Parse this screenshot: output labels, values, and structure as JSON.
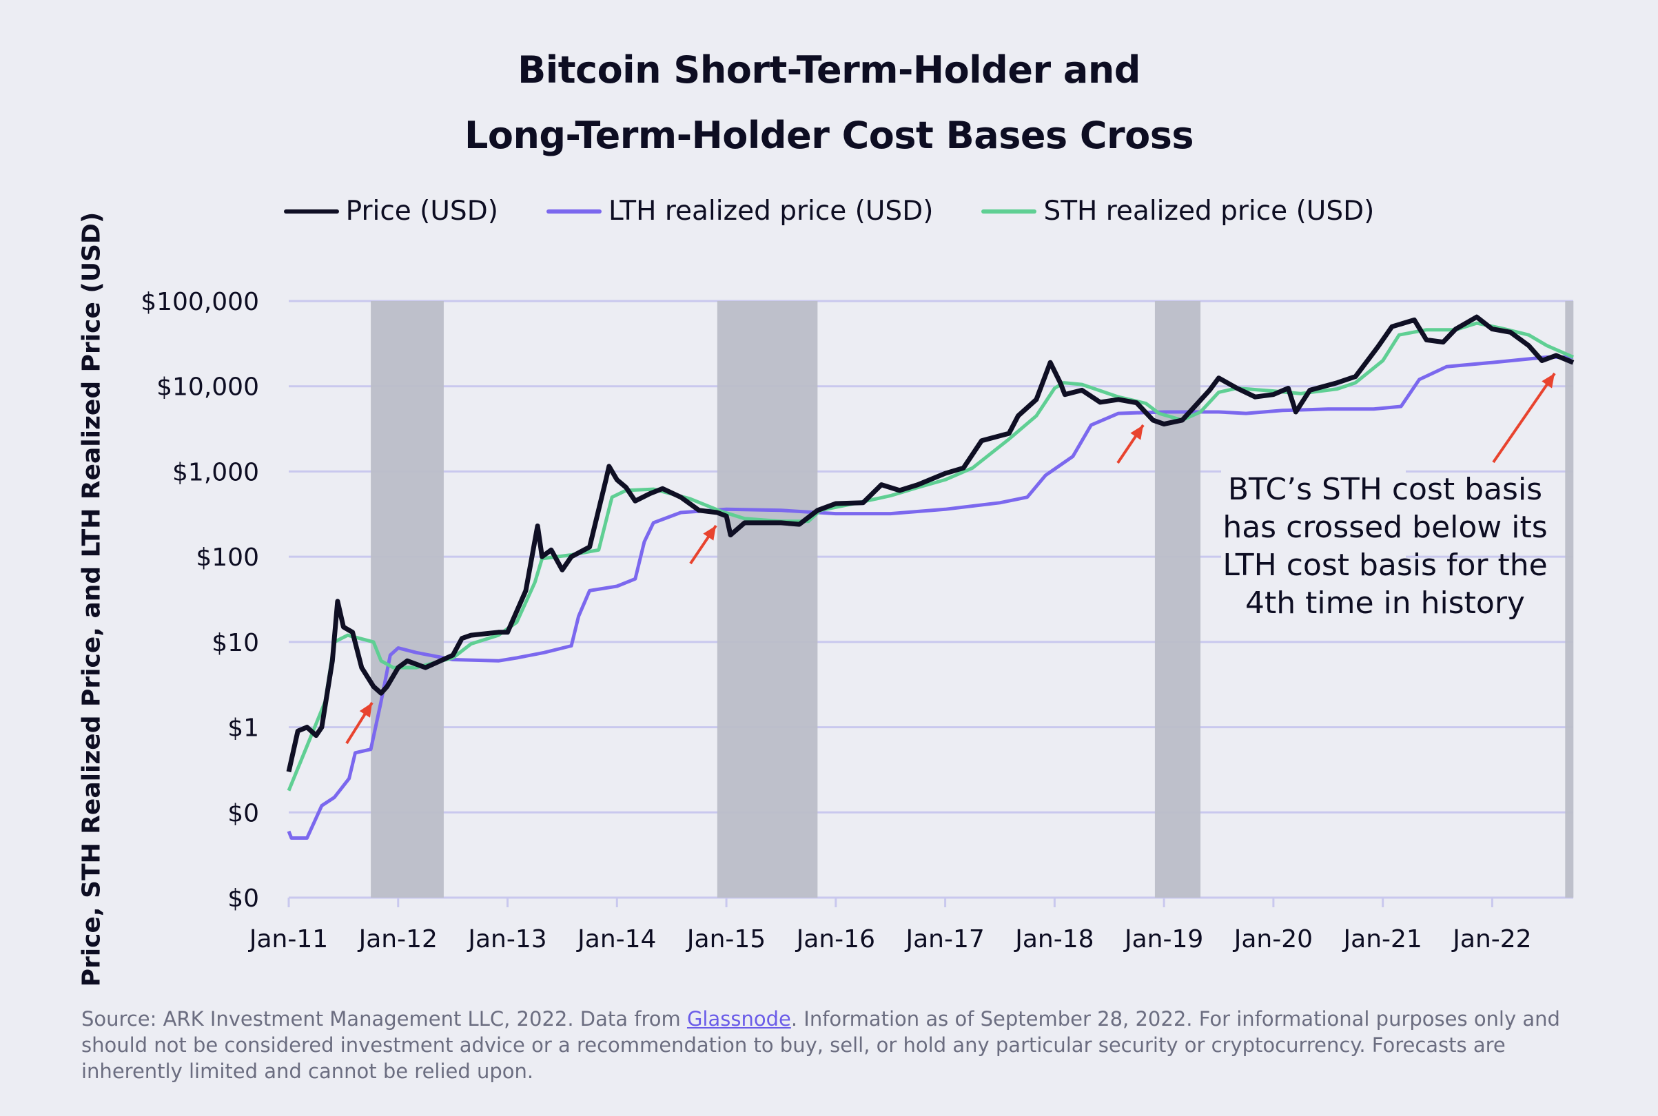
{
  "chart_data": {
    "type": "line",
    "title": [
      "Bitcoin Short-Term-Holder and",
      "Long-Term-Holder Cost Bases Cross"
    ],
    "ylabel": "Price, STH Realized Price, and LTH Realized Price (USD)",
    "xlabel": "",
    "y_scale": "log",
    "ylim": [
      0.01,
      100000
    ],
    "y_ticks": [
      {
        "value": 100000,
        "label": "$100,000"
      },
      {
        "value": 10000,
        "label": "$10,000"
      },
      {
        "value": 1000,
        "label": "$1,000"
      },
      {
        "value": 100,
        "label": "$100"
      },
      {
        "value": 10,
        "label": "$10"
      },
      {
        "value": 1,
        "label": "$1"
      },
      {
        "value": 0.1,
        "label": "$0"
      },
      {
        "value": 0.01,
        "label": "$0"
      }
    ],
    "xlim": [
      "2011-01-01",
      "2022-09-28"
    ],
    "x_ticks": [
      {
        "value": "2011-01-01",
        "label": "Jan-11"
      },
      {
        "value": "2012-01-01",
        "label": "Jan-12"
      },
      {
        "value": "2013-01-01",
        "label": "Jan-13"
      },
      {
        "value": "2014-01-01",
        "label": "Jan-14"
      },
      {
        "value": "2015-01-01",
        "label": "Jan-15"
      },
      {
        "value": "2016-01-01",
        "label": "Jan-16"
      },
      {
        "value": "2017-01-01",
        "label": "Jan-17"
      },
      {
        "value": "2018-01-01",
        "label": "Jan-18"
      },
      {
        "value": "2019-01-01",
        "label": "Jan-19"
      },
      {
        "value": "2020-01-01",
        "label": "Jan-20"
      },
      {
        "value": "2021-01-01",
        "label": "Jan-21"
      },
      {
        "value": "2022-01-01",
        "label": "Jan-22"
      }
    ],
    "grid": true,
    "legend_position": "top-center",
    "shaded_periods": [
      [
        "2011-10",
        "2012-06"
      ],
      [
        "2014-12",
        "2015-11"
      ],
      [
        "2018-12",
        "2019-05"
      ],
      [
        "2022-09",
        "2022-09-28"
      ]
    ],
    "shade_color": "#bcbec8",
    "series": [
      {
        "name": "Price (USD)",
        "color": "#0f0f24",
        "points": [
          [
            "2011-01",
            0.3
          ],
          [
            "2011-02",
            0.9
          ],
          [
            "2011-03",
            1.0
          ],
          [
            "2011-04",
            0.8
          ],
          [
            "2011-04-20",
            1.0
          ],
          [
            "2011-05-25",
            6
          ],
          [
            "2011-06-12",
            30
          ],
          [
            "2011-07",
            15
          ],
          [
            "2011-08",
            13
          ],
          [
            "2011-09",
            5
          ],
          [
            "2011-10-10",
            3
          ],
          [
            "2011-11-05",
            2.5
          ],
          [
            "2011-11-25",
            3
          ],
          [
            "2012-01",
            5
          ],
          [
            "2012-02",
            6
          ],
          [
            "2012-04",
            5
          ],
          [
            "2012-07",
            7
          ],
          [
            "2012-08",
            11
          ],
          [
            "2012-09",
            12
          ],
          [
            "2012-12",
            13
          ],
          [
            "2013-01",
            13
          ],
          [
            "2013-03",
            40
          ],
          [
            "2013-04-10",
            230
          ],
          [
            "2013-04-25",
            100
          ],
          [
            "2013-05-25",
            120
          ],
          [
            "2013-07",
            70
          ],
          [
            "2013-08",
            100
          ],
          [
            "2013-10",
            130
          ],
          [
            "2013-11-25",
            800
          ],
          [
            "2013-12-05",
            1150
          ],
          [
            "2014-01",
            800
          ],
          [
            "2014-02",
            650
          ],
          [
            "2014-03",
            450
          ],
          [
            "2014-04-20",
            550
          ],
          [
            "2014-06",
            630
          ],
          [
            "2014-08",
            500
          ],
          [
            "2014-10",
            350
          ],
          [
            "2014-12",
            330
          ],
          [
            "2015-01",
            300
          ],
          [
            "2015-01-15",
            180
          ],
          [
            "2015-03",
            250
          ],
          [
            "2015-07",
            250
          ],
          [
            "2015-09",
            240
          ],
          [
            "2015-11",
            350
          ],
          [
            "2016-01",
            420
          ],
          [
            "2016-04",
            430
          ],
          [
            "2016-06",
            700
          ],
          [
            "2016-08",
            600
          ],
          [
            "2016-10",
            700
          ],
          [
            "2017-01",
            950
          ],
          [
            "2017-03",
            1100
          ],
          [
            "2017-05",
            2300
          ],
          [
            "2017-08",
            2800
          ],
          [
            "2017-09",
            4500
          ],
          [
            "2017-11",
            7000
          ],
          [
            "2017-12-17",
            19000
          ],
          [
            "2018-01-20",
            11000
          ],
          [
            "2018-02-05",
            8000
          ],
          [
            "2018-04",
            9000
          ],
          [
            "2018-06",
            6500
          ],
          [
            "2018-08",
            7000
          ],
          [
            "2018-10",
            6400
          ],
          [
            "2018-11-25",
            4000
          ],
          [
            "2019-01",
            3600
          ],
          [
            "2019-03",
            4000
          ],
          [
            "2019-06",
            9000
          ],
          [
            "2019-07",
            12500
          ],
          [
            "2019-09",
            9500
          ],
          [
            "2019-11",
            7500
          ],
          [
            "2020-01",
            8000
          ],
          [
            "2020-02-20",
            9500
          ],
          [
            "2020-03-15",
            5000
          ],
          [
            "2020-05",
            9000
          ],
          [
            "2020-08",
            11000
          ],
          [
            "2020-10",
            13000
          ],
          [
            "2020-12-15",
            29000
          ],
          [
            "2021-02",
            50000
          ],
          [
            "2021-04-15",
            60000
          ],
          [
            "2021-05-25",
            35000
          ],
          [
            "2021-07-20",
            33000
          ],
          [
            "2021-09",
            47000
          ],
          [
            "2021-11-10",
            65000
          ],
          [
            "2022-01",
            47000
          ],
          [
            "2022-03",
            43000
          ],
          [
            "2022-05",
            30000
          ],
          [
            "2022-06-15",
            20000
          ],
          [
            "2022-08",
            23000
          ],
          [
            "2022-09-28",
            19000
          ]
        ]
      },
      {
        "name": "LTH realized price (USD)",
        "color": "#7b68ee",
        "points": [
          [
            "2011-01",
            0.06
          ],
          [
            "2011-01-10",
            0.05
          ],
          [
            "2011-03",
            0.05
          ],
          [
            "2011-04-20",
            0.12
          ],
          [
            "2011-06",
            0.15
          ],
          [
            "2011-07-20",
            0.25
          ],
          [
            "2011-08-10",
            0.5
          ],
          [
            "2011-10",
            0.55
          ],
          [
            "2011-11-05",
            2
          ],
          [
            "2011-12-05",
            7
          ],
          [
            "2012-01",
            8.5
          ],
          [
            "2012-03",
            7.5
          ],
          [
            "2012-07",
            6.2
          ],
          [
            "2012-12",
            6.0
          ],
          [
            "2013-02",
            6.5
          ],
          [
            "2013-05",
            7.5
          ],
          [
            "2013-08",
            9
          ],
          [
            "2013-08-25",
            20
          ],
          [
            "2013-10",
            40
          ],
          [
            "2014-01",
            45
          ],
          [
            "2014-03",
            55
          ],
          [
            "2014-04",
            150
          ],
          [
            "2014-05",
            250
          ],
          [
            "2014-08",
            330
          ],
          [
            "2015-01",
            360
          ],
          [
            "2015-07",
            350
          ],
          [
            "2016-01",
            320
          ],
          [
            "2016-07",
            320
          ],
          [
            "2017-01",
            360
          ],
          [
            "2017-07",
            430
          ],
          [
            "2017-10",
            500
          ],
          [
            "2017-12",
            900
          ],
          [
            "2018-03",
            1500
          ],
          [
            "2018-05",
            3500
          ],
          [
            "2018-08",
            4800
          ],
          [
            "2019-01",
            5000
          ],
          [
            "2019-07",
            5000
          ],
          [
            "2019-10",
            4800
          ],
          [
            "2020-02",
            5200
          ],
          [
            "2020-07",
            5400
          ],
          [
            "2020-12",
            5400
          ],
          [
            "2021-03",
            5800
          ],
          [
            "2021-05",
            12000
          ],
          [
            "2021-08",
            17000
          ],
          [
            "2022-01",
            19000
          ],
          [
            "2022-07",
            22000
          ],
          [
            "2022-09-28",
            22000
          ]
        ]
      },
      {
        "name": "STH realized price (USD)",
        "color": "#5fcf93",
        "points": [
          [
            "2011-01",
            0.18
          ],
          [
            "2011-03",
            0.6
          ],
          [
            "2011-05",
            2
          ],
          [
            "2011-06",
            10
          ],
          [
            "2011-07-15",
            12
          ],
          [
            "2011-08-25",
            11
          ],
          [
            "2011-10-10",
            10
          ],
          [
            "2011-11-05",
            6
          ],
          [
            "2011-12-15",
            5
          ],
          [
            "2012-03",
            5
          ],
          [
            "2012-07",
            6.5
          ],
          [
            "2012-09",
            9.5
          ],
          [
            "2012-12",
            12
          ],
          [
            "2013-02",
            17
          ],
          [
            "2013-04",
            50
          ],
          [
            "2013-04-25",
            95
          ],
          [
            "2013-08",
            105
          ],
          [
            "2013-11",
            120
          ],
          [
            "2013-12-15",
            500
          ],
          [
            "2014-02",
            600
          ],
          [
            "2014-05",
            620
          ],
          [
            "2014-09",
            480
          ],
          [
            "2014-12-15",
            340
          ],
          [
            "2015-03",
            280
          ],
          [
            "2015-07",
            260
          ],
          [
            "2015-10",
            260
          ],
          [
            "2015-11-10",
            350
          ],
          [
            "2016-03",
            420
          ],
          [
            "2016-07",
            520
          ],
          [
            "2016-10",
            650
          ],
          [
            "2017-01",
            800
          ],
          [
            "2017-04",
            1100
          ],
          [
            "2017-08",
            2400
          ],
          [
            "2017-11",
            4500
          ],
          [
            "2018-01",
            9500
          ],
          [
            "2018-02",
            11000
          ],
          [
            "2018-04",
            10500
          ],
          [
            "2018-08",
            7500
          ],
          [
            "2018-11",
            6300
          ],
          [
            "2018-12-15",
            4800
          ],
          [
            "2019-03",
            4000
          ],
          [
            "2019-05",
            5000
          ],
          [
            "2019-07",
            8500
          ],
          [
            "2019-09",
            9500
          ],
          [
            "2020-01",
            8800
          ],
          [
            "2020-04",
            8200
          ],
          [
            "2020-08",
            9300
          ],
          [
            "2020-10",
            11000
          ],
          [
            "2021-01",
            20000
          ],
          [
            "2021-02-25",
            40000
          ],
          [
            "2021-05-25",
            46000
          ],
          [
            "2021-09",
            46000
          ],
          [
            "2021-11-10",
            55000
          ],
          [
            "2022-02",
            48000
          ],
          [
            "2022-05",
            40000
          ],
          [
            "2022-07",
            30000
          ],
          [
            "2022-09-28",
            22000
          ]
        ]
      }
    ],
    "annotation": {
      "text": [
        "BTC’s STH cost basis",
        "has crossed below its",
        "LTH cost basis for the",
        "4th time in history"
      ],
      "arrow_color": "#e8432e",
      "arrows_point_to": [
        "2011-10",
        "2014-11",
        "2018-10",
        "2022-08"
      ]
    }
  },
  "footer": {
    "before_link": "Source: ARK Investment Management LLC, 2022. Data from ",
    "link": "Glassnode",
    "after_link": ". Information as of September 28, 2022. For informational purposes only and should not be considered investment advice or a recommendation to buy, sell, or hold any particular security or cryptocurrency. Forecasts are inherently limited and cannot be relied upon."
  }
}
